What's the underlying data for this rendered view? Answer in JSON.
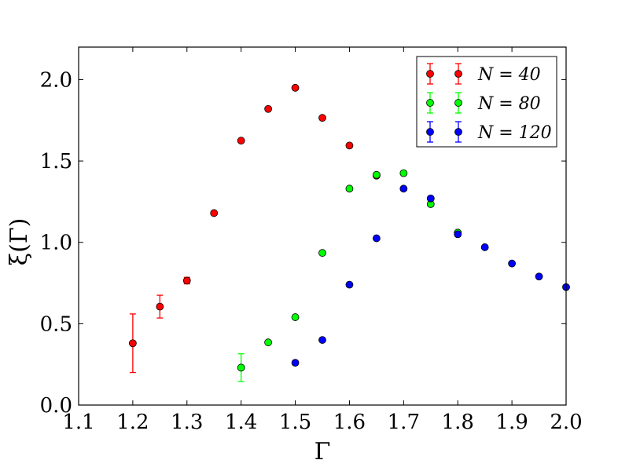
{
  "chart_data": {
    "type": "scatter",
    "xlabel": "Γ",
    "ylabel": "ξ(Γ)",
    "xlim": [
      1.1,
      2.0
    ],
    "ylim": [
      0.0,
      2.2
    ],
    "xticks": [
      "1.1",
      "1.2",
      "1.3",
      "1.4",
      "1.5",
      "1.6",
      "1.7",
      "1.8",
      "1.9",
      "2.0"
    ],
    "yticks": [
      "0.0",
      "0.5",
      "1.0",
      "1.5",
      "2.0"
    ],
    "legend_position": "top-right",
    "grid": false,
    "series": [
      {
        "name": "N = 40",
        "color": "#ff0000",
        "points": [
          {
            "x": 1.2,
            "y": 0.38,
            "err": 0.18
          },
          {
            "x": 1.25,
            "y": 0.605,
            "err": 0.07
          },
          {
            "x": 1.3,
            "y": 0.765,
            "err": 0.02
          },
          {
            "x": 1.35,
            "y": 1.18,
            "err": 0.0
          },
          {
            "x": 1.4,
            "y": 1.625,
            "err": 0.0
          },
          {
            "x": 1.45,
            "y": 1.82,
            "err": 0.0
          },
          {
            "x": 1.5,
            "y": 1.95,
            "err": 0.0
          },
          {
            "x": 1.55,
            "y": 1.765,
            "err": 0.0
          },
          {
            "x": 1.6,
            "y": 1.595,
            "err": 0.0
          },
          {
            "x": 1.65,
            "y": 1.41,
            "err": 0.0
          }
        ]
      },
      {
        "name": "N = 80",
        "color": "#00ff00",
        "points": [
          {
            "x": 1.4,
            "y": 0.23,
            "err": 0.085
          },
          {
            "x": 1.45,
            "y": 0.385,
            "err": 0.0
          },
          {
            "x": 1.5,
            "y": 0.54,
            "err": 0.0
          },
          {
            "x": 1.55,
            "y": 0.935,
            "err": 0.0
          },
          {
            "x": 1.6,
            "y": 1.33,
            "err": 0.0
          },
          {
            "x": 1.65,
            "y": 1.415,
            "err": 0.0
          },
          {
            "x": 1.7,
            "y": 1.425,
            "err": 0.0
          },
          {
            "x": 1.75,
            "y": 1.235,
            "err": 0.0
          },
          {
            "x": 1.8,
            "y": 1.06,
            "err": 0.0
          }
        ]
      },
      {
        "name": "N = 120",
        "color": "#0000ff",
        "points": [
          {
            "x": 1.5,
            "y": 0.26,
            "err": 0.0
          },
          {
            "x": 1.55,
            "y": 0.4,
            "err": 0.0
          },
          {
            "x": 1.6,
            "y": 0.74,
            "err": 0.0
          },
          {
            "x": 1.65,
            "y": 1.025,
            "err": 0.0
          },
          {
            "x": 1.7,
            "y": 1.33,
            "err": 0.0
          },
          {
            "x": 1.75,
            "y": 1.27,
            "err": 0.0
          },
          {
            "x": 1.8,
            "y": 1.05,
            "err": 0.0
          },
          {
            "x": 1.85,
            "y": 0.97,
            "err": 0.0
          },
          {
            "x": 1.9,
            "y": 0.87,
            "err": 0.0
          },
          {
            "x": 1.95,
            "y": 0.79,
            "err": 0.0
          },
          {
            "x": 2.0,
            "y": 0.725,
            "err": 0.0
          }
        ]
      }
    ]
  }
}
